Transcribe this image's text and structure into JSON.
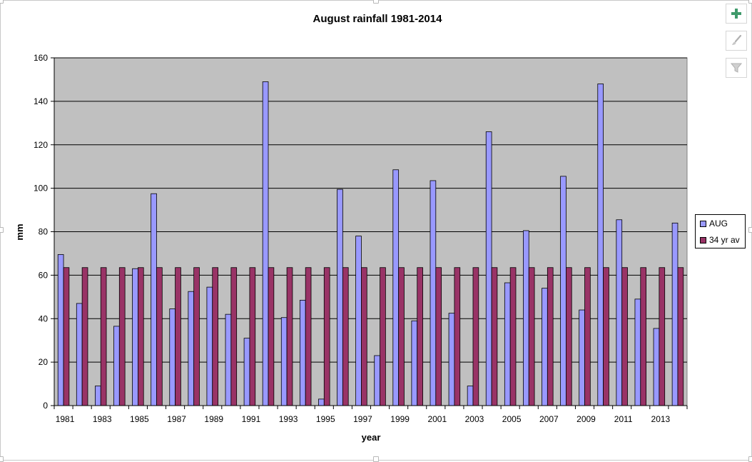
{
  "toolbar": {
    "add_icon": "plus-icon",
    "style_icon": "paintbrush-icon",
    "filter_icon": "funnel-icon"
  },
  "chart_data": {
    "type": "bar",
    "title": "August rainfall 1981-2014",
    "xlabel": "year",
    "ylabel": "mm",
    "ylim": [
      0,
      160
    ],
    "yticks": [
      0,
      20,
      40,
      60,
      80,
      100,
      120,
      140,
      160
    ],
    "grid": true,
    "legend_position": "right",
    "plot_background": "#c0c0c0",
    "categories": [
      1981,
      1982,
      1983,
      1984,
      1985,
      1986,
      1987,
      1988,
      1989,
      1990,
      1991,
      1992,
      1993,
      1994,
      1995,
      1996,
      1997,
      1998,
      1999,
      2000,
      2001,
      2002,
      2003,
      2004,
      2005,
      2006,
      2007,
      2008,
      2009,
      2010,
      2011,
      2012,
      2013,
      2014
    ],
    "xtick_labels": [
      "1981",
      "1983",
      "1985",
      "1987",
      "1989",
      "1991",
      "1993",
      "1995",
      "1997",
      "1999",
      "2001",
      "2003",
      "2005",
      "2007",
      "2009",
      "2011",
      "2013"
    ],
    "series": [
      {
        "name": "AUG",
        "color": "#9999ff",
        "values": [
          69.5,
          47,
          9,
          36.5,
          63,
          97.5,
          44.5,
          52.5,
          54.5,
          42,
          31,
          149,
          40.5,
          48.5,
          3,
          99.5,
          78,
          23,
          108.5,
          39,
          103.5,
          42.5,
          9,
          126,
          56.5,
          80.5,
          54,
          105.5,
          44,
          148,
          85.5,
          49,
          35.5,
          84
        ]
      },
      {
        "name": "34 yr av",
        "color": "#993366",
        "values": [
          63.5,
          63.5,
          63.5,
          63.5,
          63.5,
          63.5,
          63.5,
          63.5,
          63.5,
          63.5,
          63.5,
          63.5,
          63.5,
          63.5,
          63.5,
          63.5,
          63.5,
          63.5,
          63.5,
          63.5,
          63.5,
          63.5,
          63.5,
          63.5,
          63.5,
          63.5,
          63.5,
          63.5,
          63.5,
          63.5,
          63.5,
          63.5,
          63.5,
          63.5
        ]
      }
    ]
  }
}
